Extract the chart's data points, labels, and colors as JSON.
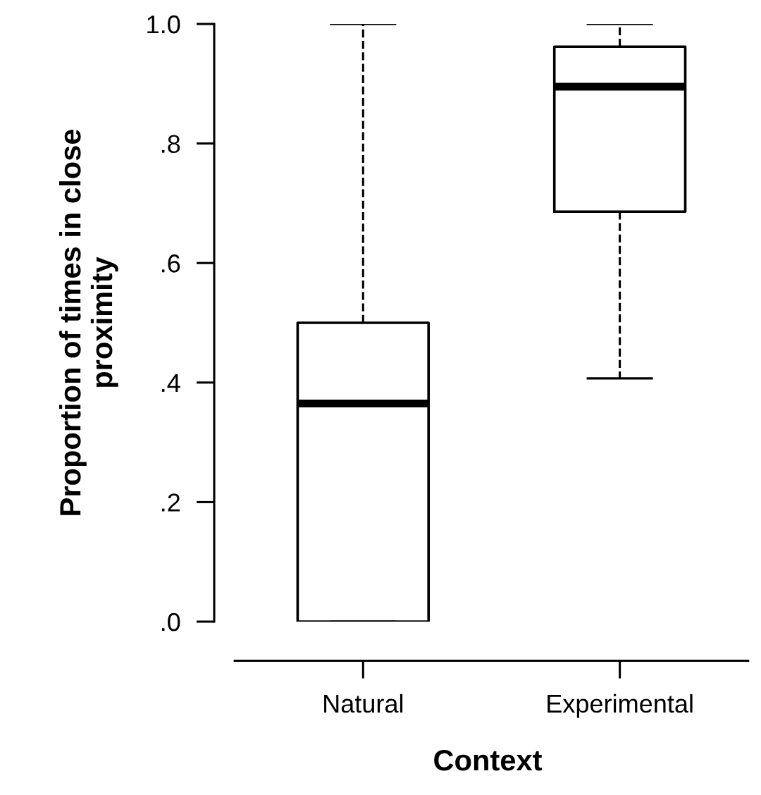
{
  "chart_data": {
    "type": "box",
    "xlabel": "Context",
    "ylabel": "Proportion of times in close\nproximity",
    "categories": [
      "Natural",
      "Experimental"
    ],
    "boxes": [
      {
        "low": 0.0,
        "q1": 0.0,
        "median": 0.365,
        "q3": 0.5,
        "high": 1.0
      },
      {
        "low": 0.407,
        "q1": 0.686,
        "median": 0.895,
        "q3": 0.962,
        "high": 1.0
      }
    ],
    "color": "#000000",
    "ylim": [
      0,
      1
    ],
    "yticks": [
      {
        "value": 0,
        "label": ".0"
      },
      {
        "value": 0.2,
        "label": ".2"
      },
      {
        "value": 0.4,
        "label": ".4"
      },
      {
        "value": 0.6,
        "label": ".6"
      },
      {
        "value": 0.8,
        "label": ".8"
      },
      {
        "value": 1.0,
        "label": "1.0"
      }
    ],
    "grid": false,
    "line_style": "dashed"
  }
}
